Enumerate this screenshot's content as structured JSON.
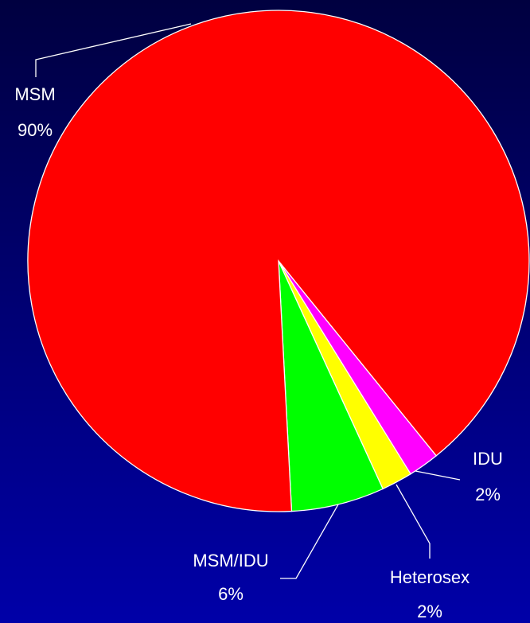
{
  "chart_data": {
    "type": "pie",
    "categories": [
      "IDU",
      "Heterosex",
      "MSM/IDU",
      "MSM"
    ],
    "values": [
      2,
      2,
      6,
      90
    ],
    "value_labels": [
      "2%",
      "2%",
      "6%",
      "90%"
    ],
    "colors": [
      "#ff00ff",
      "#ffff00",
      "#00ff00",
      "#ff0000"
    ]
  }
}
